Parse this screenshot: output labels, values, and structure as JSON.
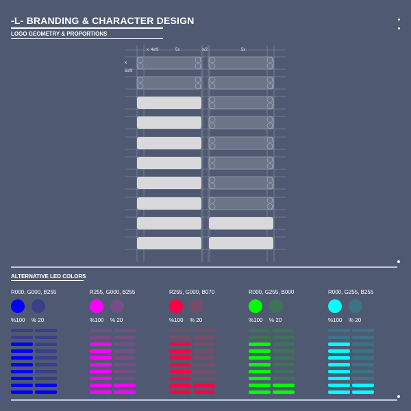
{
  "header": {
    "title": "-L- BRANDING & CHARACTER DESIGN",
    "subtitle": "LOGO GEOMETRY & PROPORTIONS"
  },
  "geometry": {
    "labels": {
      "x_label": "x",
      "x49": "4x/9",
      "fivex_a": "5x",
      "x2": "x/2",
      "fivex_b": "5x",
      "side_x": "x",
      "side_5x9": "5x/9"
    },
    "rows": [
      {
        "left_type": "ghost",
        "right_type": "ghost"
      },
      {
        "left_type": "ghost",
        "right_type": "ghost"
      },
      {
        "left_type": "solid",
        "right_type": "ghost"
      },
      {
        "left_type": "solid",
        "right_type": "ghost"
      },
      {
        "left_type": "solid",
        "right_type": "ghost"
      },
      {
        "left_type": "solid",
        "right_type": "ghost"
      },
      {
        "left_type": "solid",
        "right_type": "ghost"
      },
      {
        "left_type": "solid",
        "right_type": "ghost"
      },
      {
        "left_type": "solid",
        "right_type": "solid"
      },
      {
        "left_type": "solid",
        "right_type": "solid"
      }
    ],
    "colors": {
      "solid": "#d9d9dc",
      "ghost": "#6c7588",
      "ghost_stroke": "#aeb6c6",
      "grid": "#8c95a8"
    }
  },
  "alt_colors": {
    "title": "ALTERNATIVE LED COLORS",
    "full_label": "%100",
    "dim_label": "% 20",
    "columns": [
      {
        "rgb": "R000, G000, B255",
        "full": "#0000ff",
        "dim": "#3a3f87"
      },
      {
        "rgb": "R255, G000, B255",
        "full": "#ff00ff",
        "dim": "#764d86"
      },
      {
        "rgb": "R255, G000, B070",
        "full": "#ff0046",
        "dim": "#764d67"
      },
      {
        "rgb": "R000, G255, B000",
        "full": "#00ff00",
        "dim": "#3d7356"
      },
      {
        "rgb": "R000, G255, B255",
        "full": "#00ffff",
        "dim": "#3d7386"
      }
    ],
    "bar_pattern": [
      [
        "dim",
        "dim"
      ],
      [
        "dim",
        "dim"
      ],
      [
        "full",
        "dim"
      ],
      [
        "full",
        "dim"
      ],
      [
        "full",
        "dim"
      ],
      [
        "full",
        "dim"
      ],
      [
        "full",
        "dim"
      ],
      [
        "full",
        "dim"
      ],
      [
        "full",
        "full"
      ],
      [
        "full",
        "full"
      ]
    ]
  }
}
